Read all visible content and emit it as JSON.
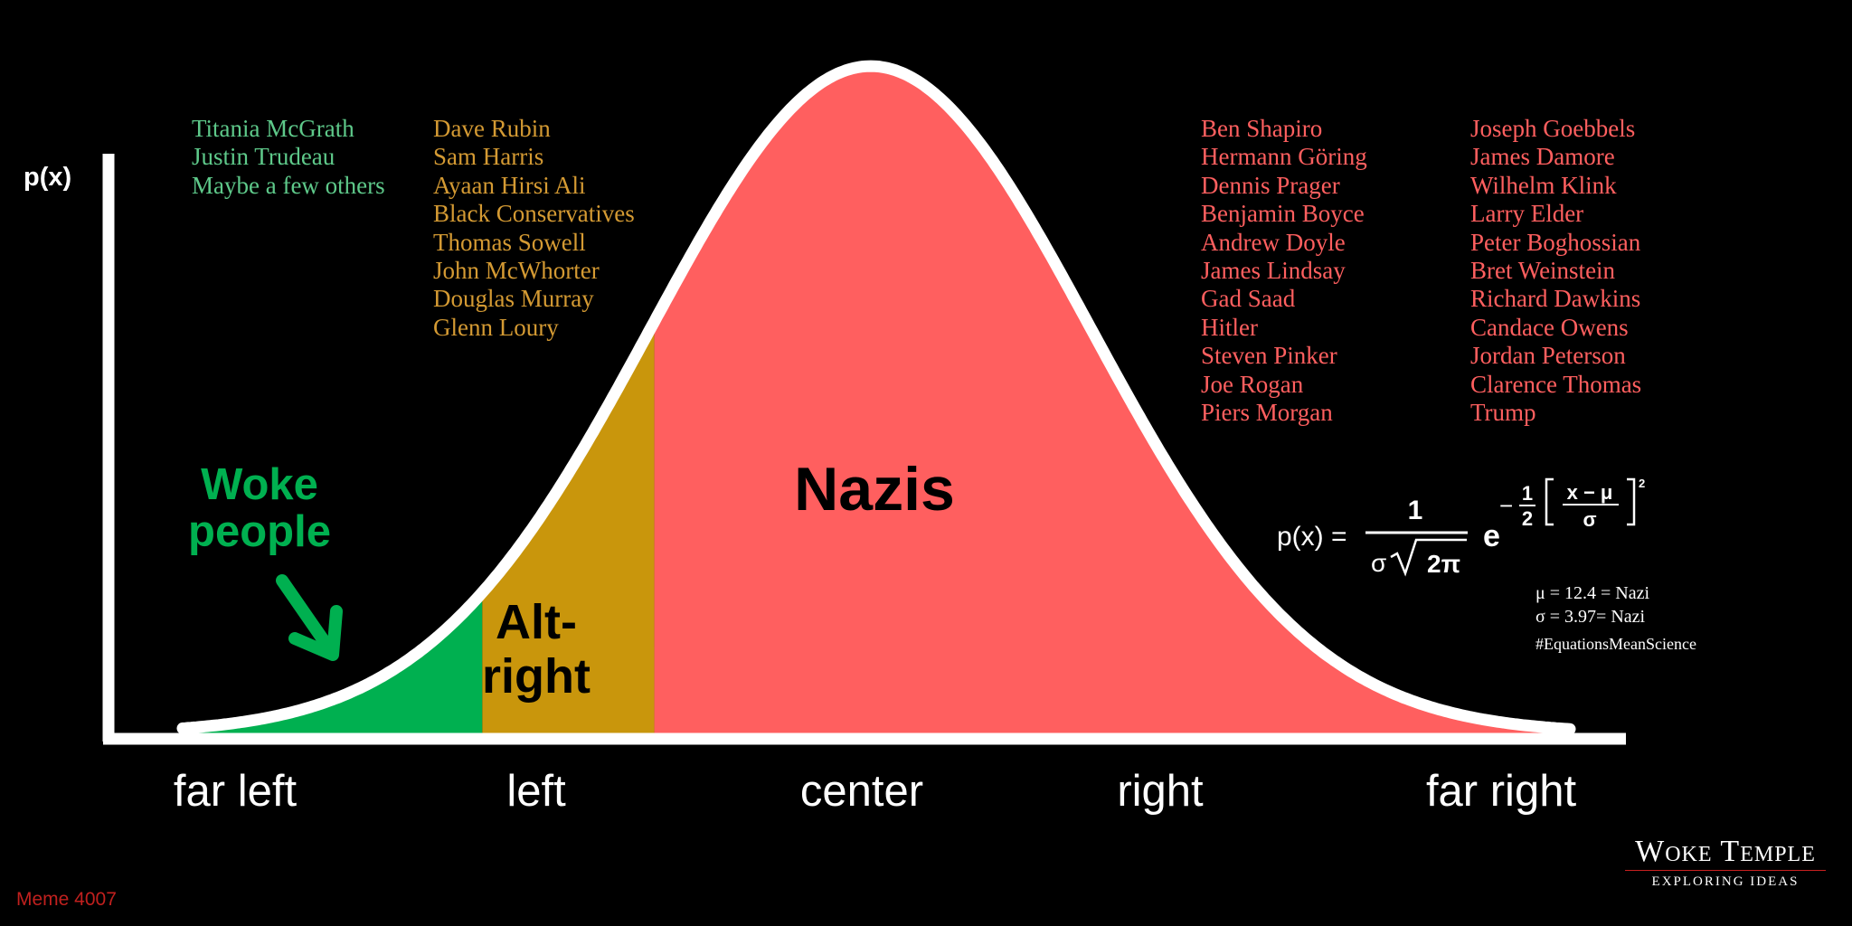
{
  "chart_data": {
    "type": "area",
    "title": "",
    "ylabel": "p(x)",
    "xlabel": "",
    "x_range": [
      0,
      25
    ],
    "y_range": [
      0,
      0.105
    ],
    "distribution": {
      "type": "normal",
      "mean": 12.4,
      "sd": 3.97
    },
    "x_tick_labels": [
      "far left",
      "left",
      "center",
      "right",
      "far right"
    ],
    "regions": [
      {
        "name": "Woke people",
        "x_start": 0,
        "x_end": 5.4,
        "color": "#00b050"
      },
      {
        "name": "Alt-right",
        "x_start": 5.4,
        "x_end": 8.5,
        "color": "#c9960c"
      },
      {
        "name": "Nazis",
        "x_start": 8.5,
        "x_end": 25,
        "color": "#ff5f5f"
      }
    ],
    "grid": false,
    "legend": "none"
  },
  "colors": {
    "green_names": "#5ec98a",
    "gold_names": "#d49a33",
    "red_names": "#ff5f5f"
  },
  "labels": {
    "y_axis": "p(x)",
    "woke_1": "Woke",
    "woke_2": "people",
    "altright_1": "Alt-",
    "altright_2": "right",
    "nazis": "Nazis"
  },
  "name_lists": {
    "woke": [
      "Titania McGrath",
      "Justin Trudeau",
      "Maybe a few others"
    ],
    "alt_right": [
      "Dave Rubin",
      "Sam Harris",
      "Ayaan Hirsi Ali",
      "Black Conservatives",
      "Thomas Sowell",
      "John McWhorter",
      "Douglas Murray",
      "Glenn Loury"
    ],
    "nazis_1": [
      "Ben Shapiro",
      "Hermann Göring",
      "Dennis Prager",
      "Benjamin Boyce",
      "Andrew Doyle",
      "James Lindsay",
      "Gad Saad",
      "Hitler",
      "Steven Pinker",
      "Joe Rogan",
      "Piers Morgan"
    ],
    "nazis_2": [
      "Joseph Goebbels",
      "James Damore",
      "Wilhelm Klink",
      "Larry Elder",
      "Peter Boghossian",
      "Bret Weinstein",
      "Richard Dawkins",
      "Candace Owens",
      "Jordan Peterson",
      "Clarence Thomas",
      "Trump"
    ]
  },
  "equation": {
    "lhs": "p(x) =",
    "numerator": "1",
    "denominator_sigma": "σ",
    "denominator_root": "2π",
    "base": "e",
    "exp_minus": "−",
    "exp_half_num": "1",
    "exp_half_den": "2",
    "exp_inner_num": "x − μ",
    "exp_inner_den": "σ",
    "exp_square": "2"
  },
  "params": {
    "mu_line": "μ = 12.4 = Nazi",
    "sigma_line": "σ = 3.97= Nazi",
    "hashtag": "#EquationsMeanScience"
  },
  "branding": {
    "name": "Woke Temple",
    "tagline": "EXPLORING IDEAS"
  },
  "meme_id": "Meme 4007"
}
